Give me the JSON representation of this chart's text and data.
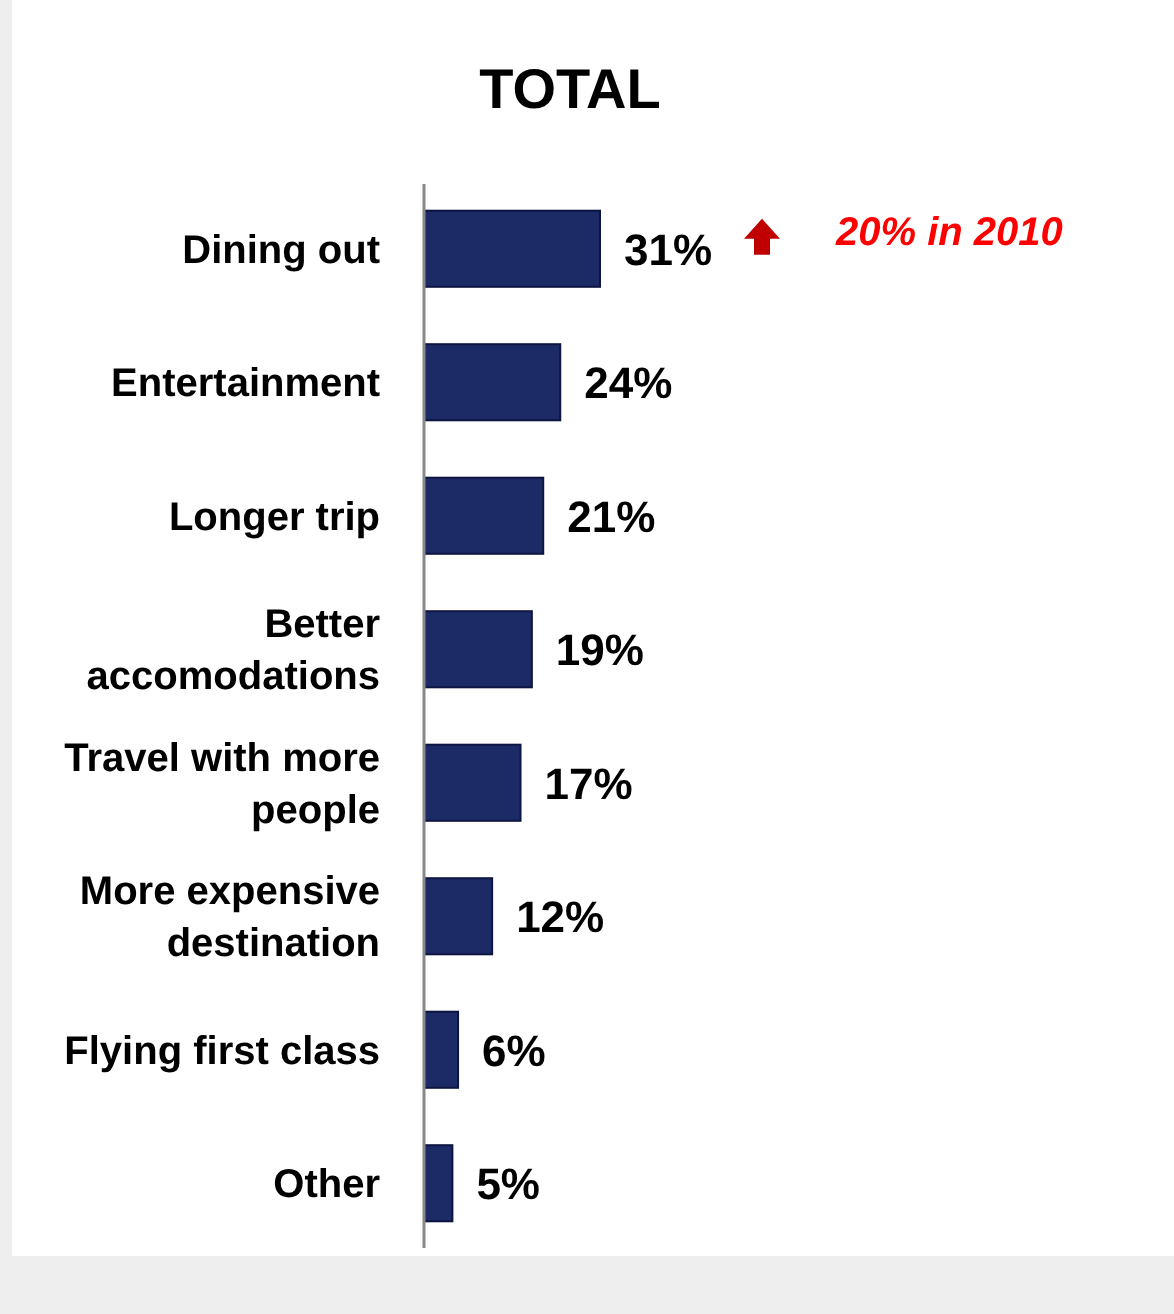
{
  "chart_data": {
    "type": "bar",
    "orientation": "horizontal",
    "title": "TOTAL",
    "categories": [
      "Dining out",
      "Entertainment",
      "Longer trip",
      "Better\naccomodations",
      "Travel with more\npeople",
      "More expensive\ndestination",
      "Flying first class",
      "Other"
    ],
    "values": [
      31,
      24,
      21,
      19,
      17,
      12,
      6,
      5
    ],
    "value_labels": [
      "31%",
      "24%",
      "21%",
      "19%",
      "17%",
      "12%",
      "6%",
      "5%"
    ],
    "color": "#1c2a66",
    "annotations": [
      "20% in 2010"
    ]
  }
}
